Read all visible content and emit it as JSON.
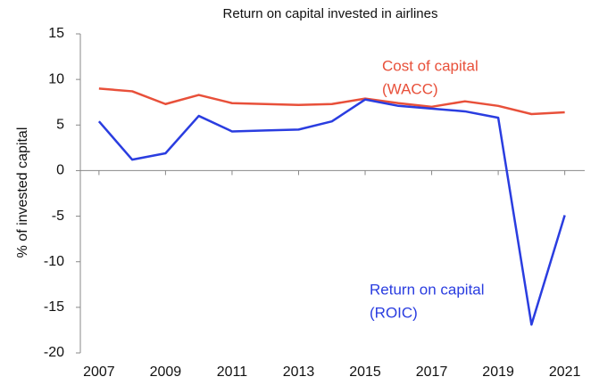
{
  "chart_data": {
    "type": "line",
    "title": "Return on capital invested in airlines",
    "y_label": "% of invested capital",
    "x": [
      2007,
      2008,
      2009,
      2010,
      2011,
      2012,
      2013,
      2014,
      2015,
      2016,
      2017,
      2018,
      2019,
      2020,
      2021
    ],
    "xlim": [
      2006.44,
      2021.6
    ],
    "xticks": [
      2007,
      2009,
      2011,
      2013,
      2015,
      2017,
      2019,
      2021
    ],
    "ylim": [
      -20,
      15
    ],
    "yticks": [
      -20,
      -15,
      -10,
      -5,
      0,
      5,
      10,
      15
    ],
    "grid": false,
    "series": [
      {
        "color": "#e8503a",
        "values": [
          9.0,
          8.7,
          7.3,
          8.3,
          7.4,
          7.3,
          7.2,
          7.3,
          7.9,
          7.4,
          7.0,
          7.6,
          7.1,
          6.2,
          6.4
        ]
      },
      {
        "color": "#2a3de0",
        "values": [
          5.4,
          1.2,
          1.9,
          6.0,
          4.3,
          4.4,
          4.5,
          5.4,
          7.8,
          7.1,
          6.8,
          6.5,
          5.8,
          -16.9,
          -4.9
        ]
      }
    ],
    "annotations": [
      {
        "lines": [
          "Cost of capital",
          "(WACC)"
        ],
        "color": "#e8503a"
      },
      {
        "lines": [
          "Return on capital",
          "(ROIC)"
        ],
        "color": "#2a3de0"
      }
    ]
  }
}
